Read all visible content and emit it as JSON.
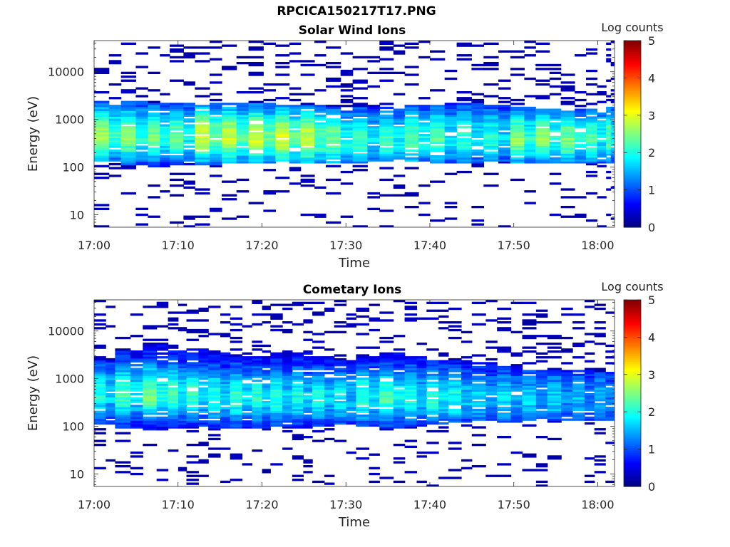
{
  "figure": {
    "title": "RPCICA150217T17.PNG"
  },
  "chart_data": [
    {
      "type": "heatmap",
      "title": "Solar Wind Ions",
      "xlabel": "Time",
      "ylabel": "Energy (eV)",
      "x_range": [
        "17:00",
        "18:02"
      ],
      "ylim": [
        5.5,
        45000
      ],
      "y_scale": "log",
      "x_tick_labels": [
        "17:00",
        "17:10",
        "17:20",
        "17:30",
        "17:40",
        "17:50",
        "18:00"
      ],
      "y_tick_labels": [
        "10",
        "100",
        "1000",
        "10000"
      ],
      "colorbar": {
        "label": "Log counts",
        "range": [
          0,
          5
        ],
        "tick_labels": [
          "0",
          "1",
          "2",
          "3",
          "4",
          "5"
        ],
        "colormap": "jet"
      },
      "scans_start_min": [
        0.0,
        3.2,
        6.4,
        9.0,
        12.0,
        15.2,
        18.4,
        21.6,
        24.6,
        27.6,
        30.8,
        34.0,
        37.0,
        40.0,
        43.2,
        46.4,
        49.6,
        52.6,
        55.6,
        58.6,
        61.0
      ],
      "core": {
        "low_edge_eV": [
          130,
          110,
          105,
          110,
          115,
          120,
          120,
          120,
          125,
          125,
          125,
          130,
          130,
          125,
          125,
          130,
          125,
          125,
          125,
          125,
          120
        ],
        "high_edge_eV": [
          2400,
          2400,
          2300,
          2300,
          2300,
          2200,
          2200,
          2100,
          2000,
          1900,
          1900,
          1900,
          2000,
          2200,
          2300,
          2000,
          1800,
          1700,
          1700,
          1700,
          1800
        ],
        "peak_eV": [
          450,
          450,
          450,
          450,
          450,
          430,
          420,
          420,
          400,
          380,
          380,
          380,
          400,
          420,
          430,
          420,
          400,
          400,
          400,
          400,
          420
        ],
        "peak_log_counts": [
          2.4,
          2.3,
          2.2,
          2.1,
          2.7,
          2.6,
          2.7,
          2.7,
          2.6,
          2.2,
          1.9,
          2.0,
          2.1,
          2.0,
          1.9,
          1.8,
          2.3,
          2.3,
          2.2,
          2.0,
          2.1
        ]
      }
    },
    {
      "type": "heatmap",
      "title": "Cometary Ions",
      "xlabel": "Time",
      "ylabel": "Energy (eV)",
      "x_range": [
        "17:00",
        "18:02"
      ],
      "ylim": [
        5.5,
        45000
      ],
      "y_scale": "log",
      "x_tick_labels": [
        "17:00",
        "17:10",
        "17:20",
        "17:30",
        "17:40",
        "17:50",
        "18:00"
      ],
      "y_tick_labels": [
        "10",
        "100",
        "1000",
        "10000"
      ],
      "colorbar": {
        "label": "Log counts",
        "range": [
          0,
          5
        ],
        "tick_labels": [
          "0",
          "1",
          "2",
          "3",
          "4",
          "5"
        ],
        "colormap": "jet"
      },
      "scans_start_min": [
        0.0,
        2.5,
        5.8,
        8.8,
        11.0,
        13.6,
        16.2,
        18.8,
        21.0,
        23.6,
        26.0,
        28.6,
        31.2,
        34.0,
        37.0,
        39.6,
        42.2,
        45.0,
        48.0,
        51.0,
        54.0,
        57.0,
        59.6
      ],
      "core": {
        "low_edge_eV": [
          110,
          90,
          85,
          95,
          100,
          95,
          90,
          95,
          100,
          95,
          100,
          110,
          100,
          95,
          100,
          110,
          120,
          130,
          120,
          130,
          140,
          140,
          140
        ],
        "high_edge_eV": [
          2400,
          4000,
          5000,
          4000,
          4500,
          3500,
          3000,
          3000,
          3500,
          3500,
          3000,
          2500,
          3000,
          3500,
          3000,
          2500,
          2500,
          2200,
          1800,
          1600,
          1500,
          1500,
          1400
        ],
        "peak_eV": [
          500,
          500,
          480,
          480,
          450,
          420,
          420,
          400,
          400,
          420,
          400,
          400,
          420,
          420,
          420,
          400,
          380,
          380,
          370,
          360,
          360,
          350,
          350
        ],
        "peak_log_counts": [
          1.8,
          2.0,
          2.2,
          2.0,
          1.9,
          1.8,
          1.9,
          1.8,
          1.8,
          1.7,
          1.7,
          1.6,
          1.9,
          2.0,
          1.8,
          1.9,
          1.7,
          1.5,
          1.5,
          1.4,
          1.4,
          1.3,
          1.3
        ]
      }
    }
  ]
}
